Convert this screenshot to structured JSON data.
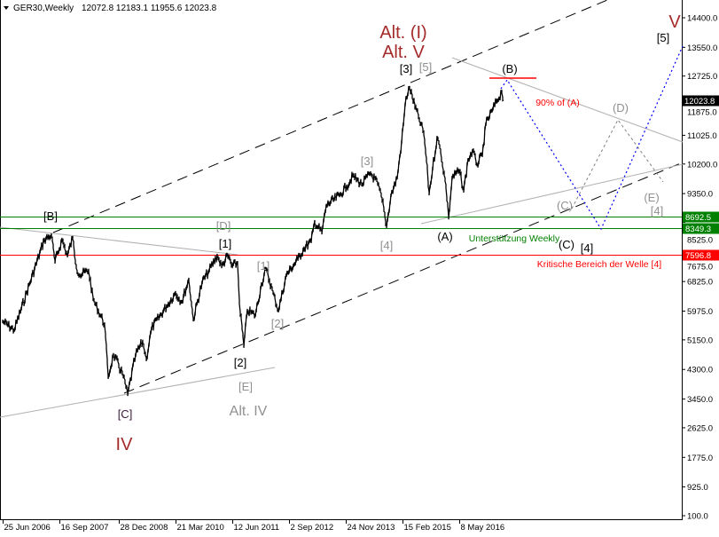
{
  "header": {
    "symbol": "GER30,Weekly",
    "ohlc": "12072.8 12183.1 11955.6 12023.8"
  },
  "colors": {
    "price": "#000000",
    "support": "#008000",
    "critical": "#ff0000",
    "wave_major": "#a52a2a",
    "alt_label": "#808080",
    "projection": "#0000ff"
  },
  "chart_data": {
    "type": "line",
    "title": "GER30,Weekly",
    "grid": false,
    "y_axis_position": "right",
    "ylim": [
      100,
      14400
    ],
    "y_ticks": [
      "14400.0",
      "13550.0",
      "12725.0",
      "11875.0",
      "11025.0",
      "10200.0",
      "9350.0",
      "8525.0",
      "7675.0",
      "6825.0",
      "5975.0",
      "5150.0",
      "4300.0",
      "3450.0",
      "2625.0",
      "1775.0",
      "925.0",
      "100.0"
    ],
    "x_ticks": [
      "25 Jun 2006",
      "16 Sep 2007",
      "28 Dec 2008",
      "21 Mar 2010",
      "12 Jun 2011",
      "2 Sep 2012",
      "24 Nov 2013",
      "15 Feb 2015",
      "8 May 2016"
    ],
    "x_tick_dates": [
      "2006-06-25",
      "2007-09-16",
      "2008-12-28",
      "2010-03-21",
      "2011-06-12",
      "2012-09-02",
      "2013-11-24",
      "2015-02-15",
      "2016-05-08"
    ],
    "series": [
      {
        "dates": [
          "2006-06-25",
          "2006-09-24",
          "2007-05-20",
          "2007-07-15",
          "2007-08-12",
          "2007-10-07",
          "2007-11-18",
          "2007-12-30",
          "2008-01-27",
          "2008-02-24",
          "2008-05-04",
          "2008-06-08",
          "2008-09-07",
          "2008-10-05",
          "2008-11-16",
          "2009-01-25",
          "2009-03-08",
          "2009-05-10",
          "2009-07-05",
          "2009-08-02",
          "2009-09-13",
          "2010-01-10",
          "2010-03-21",
          "2010-05-09",
          "2010-07-04",
          "2010-08-08",
          "2010-10-17",
          "2010-12-12",
          "2011-02-13",
          "2011-03-20",
          "2011-05-08",
          "2011-06-12",
          "2011-07-24",
          "2011-08-07",
          "2011-09-11",
          "2011-10-09",
          "2011-12-11",
          "2012-01-29",
          "2012-03-04",
          "2012-04-29",
          "2012-06-10",
          "2012-08-12",
          "2012-11-11",
          "2012-12-30",
          "2013-02-24",
          "2013-03-24",
          "2013-05-19",
          "2013-06-23",
          "2013-10-06",
          "2013-12-01",
          "2014-01-19",
          "2014-03-30",
          "2014-06-08",
          "2014-08-03",
          "2014-09-07",
          "2014-10-12",
          "2014-11-16",
          "2015-01-04",
          "2015-02-08",
          "2015-03-15",
          "2015-04-12",
          "2015-05-24",
          "2015-06-28",
          "2015-08-02",
          "2015-08-23",
          "2015-09-13",
          "2015-10-11",
          "2015-11-15",
          "2015-12-13",
          "2016-01-24",
          "2016-02-14",
          "2016-03-13",
          "2016-05-08",
          "2016-06-12",
          "2016-07-17",
          "2016-08-21",
          "2016-09-25",
          "2016-11-06",
          "2016-12-04",
          "2017-01-22",
          "2017-02-26",
          "2017-04-09",
          "2017-04-23"
        ],
        "values": [
          5680,
          5430,
          8030,
          8155,
          7390,
          8030,
          7570,
          8080,
          7260,
          7010,
          7140,
          6320,
          5600,
          4080,
          4720,
          4200,
          3590,
          4720,
          5100,
          4590,
          5480,
          6120,
          6500,
          6240,
          6880,
          5730,
          6800,
          7140,
          7570,
          7260,
          7570,
          7260,
          7360,
          6240,
          4970,
          5990,
          5860,
          6750,
          7190,
          6500,
          5990,
          7010,
          7470,
          7780,
          7980,
          8540,
          8230,
          9000,
          9300,
          9560,
          9860,
          9610,
          9940,
          9630,
          9180,
          8410,
          9300,
          9810,
          10830,
          12100,
          12390,
          11860,
          11470,
          11090,
          10320,
          9350,
          10070,
          10960,
          10580,
          9560,
          8660,
          9810,
          10010,
          9430,
          10320,
          10580,
          10190,
          10450,
          11340,
          11730,
          11980,
          12280,
          12030
        ]
      }
    ],
    "horizontal_levels": [
      {
        "value": 8692.5,
        "label": "8692.5",
        "color": "#008000"
      },
      {
        "value": 8349.3,
        "label": "8349.3",
        "color": "#008000"
      },
      {
        "value": 7596.8,
        "label": "7596.8",
        "color": "#ff0000"
      }
    ],
    "current_price": {
      "value": 12023.8,
      "label": "12023.8"
    },
    "annotations": {
      "alt_I": "Alt. (I)",
      "alt_V": "Alt. V",
      "w3_black": "[3]",
      "w5_grey": "[5]",
      "B": "(B)",
      "pct90": "90% of (A)",
      "D": "(D)",
      "V": "V",
      "w5_black": "[5]",
      "w3_grey": "[3]",
      "Bsq": "[B]",
      "Dsq": "[D]",
      "w1_black": "[1]",
      "w1_grey": "[1]",
      "w2_grey": "[2]",
      "w2_black": "[2]",
      "Esq": "[E]",
      "alt_IV": "Alt. IV",
      "Csq": "[C]",
      "IV": "IV",
      "w4_grey": "[4]",
      "A": "(A)",
      "support": "Unterstützung Weekly",
      "C_black": "(C)",
      "w4_black": "[4]",
      "critical": "Kritische Bereich der Welle [4]",
      "C_grey": "(C)",
      "E_grey": "(E)",
      "w4_grey2": "[4]"
    }
  }
}
